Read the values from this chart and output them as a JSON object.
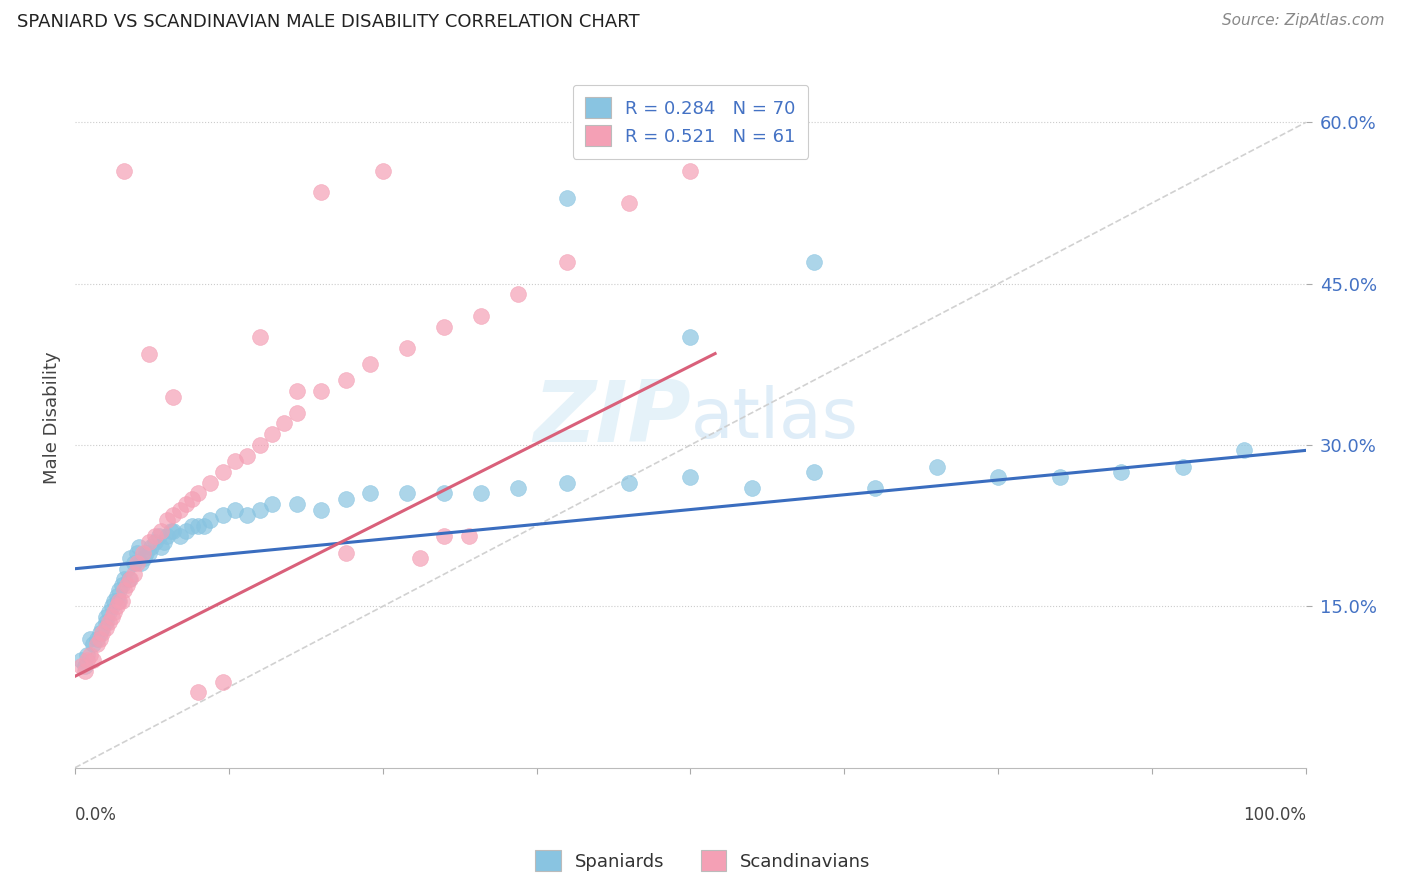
{
  "title": "SPANIARD VS SCANDINAVIAN MALE DISABILITY CORRELATION CHART",
  "source": "Source: ZipAtlas.com",
  "ylabel": "Male Disability",
  "ytick_labels": [
    "15.0%",
    "30.0%",
    "45.0%",
    "60.0%"
  ],
  "ytick_values": [
    0.15,
    0.3,
    0.45,
    0.6
  ],
  "xlim": [
    0.0,
    1.0
  ],
  "ylim": [
    0.0,
    0.65
  ],
  "blue_R": 0.284,
  "blue_N": 70,
  "pink_R": 0.521,
  "pink_N": 61,
  "blue_color": "#89c4e1",
  "pink_color": "#f4a0b5",
  "blue_line_color": "#3a6dbf",
  "pink_line_color": "#d9607a",
  "trend_line_color": "#cccccc",
  "background_color": "#ffffff",
  "grid_color": "#cccccc",
  "blue_line_x0": 0.0,
  "blue_line_y0": 0.185,
  "blue_line_x1": 1.0,
  "blue_line_y1": 0.295,
  "pink_line_x0": 0.0,
  "pink_line_y0": 0.085,
  "pink_line_x1": 0.52,
  "pink_line_y1": 0.385,
  "trend_line_x0": 0.0,
  "trend_line_y0": 0.0,
  "trend_line_x1": 1.0,
  "trend_line_y1": 0.6,
  "blue_scatter_x": [
    0.005,
    0.008,
    0.01,
    0.012,
    0.015,
    0.018,
    0.02,
    0.022,
    0.025,
    0.025,
    0.028,
    0.03,
    0.032,
    0.034,
    0.035,
    0.036,
    0.038,
    0.04,
    0.042,
    0.044,
    0.045,
    0.048,
    0.05,
    0.052,
    0.054,
    0.056,
    0.058,
    0.06,
    0.062,
    0.065,
    0.068,
    0.07,
    0.072,
    0.075,
    0.078,
    0.08,
    0.085,
    0.09,
    0.095,
    0.1,
    0.105,
    0.11,
    0.12,
    0.13,
    0.14,
    0.15,
    0.16,
    0.18,
    0.2,
    0.22,
    0.24,
    0.27,
    0.3,
    0.33,
    0.36,
    0.4,
    0.45,
    0.5,
    0.55,
    0.6,
    0.65,
    0.7,
    0.75,
    0.8,
    0.85,
    0.9,
    0.4,
    0.5,
    0.6,
    0.95
  ],
  "blue_scatter_y": [
    0.1,
    0.095,
    0.105,
    0.12,
    0.115,
    0.12,
    0.125,
    0.13,
    0.135,
    0.14,
    0.145,
    0.15,
    0.155,
    0.16,
    0.155,
    0.165,
    0.17,
    0.175,
    0.185,
    0.175,
    0.195,
    0.19,
    0.2,
    0.205,
    0.19,
    0.195,
    0.2,
    0.2,
    0.205,
    0.21,
    0.215,
    0.205,
    0.21,
    0.215,
    0.22,
    0.22,
    0.215,
    0.22,
    0.225,
    0.225,
    0.225,
    0.23,
    0.235,
    0.24,
    0.235,
    0.24,
    0.245,
    0.245,
    0.24,
    0.25,
    0.255,
    0.255,
    0.255,
    0.255,
    0.26,
    0.265,
    0.265,
    0.27,
    0.26,
    0.275,
    0.26,
    0.28,
    0.27,
    0.27,
    0.275,
    0.28,
    0.53,
    0.4,
    0.47,
    0.295
  ],
  "pink_scatter_x": [
    0.005,
    0.008,
    0.01,
    0.012,
    0.015,
    0.018,
    0.02,
    0.022,
    0.025,
    0.028,
    0.03,
    0.032,
    0.034,
    0.036,
    0.038,
    0.04,
    0.042,
    0.045,
    0.048,
    0.05,
    0.055,
    0.06,
    0.065,
    0.07,
    0.075,
    0.08,
    0.085,
    0.09,
    0.095,
    0.1,
    0.11,
    0.12,
    0.13,
    0.14,
    0.15,
    0.16,
    0.17,
    0.18,
    0.2,
    0.22,
    0.24,
    0.27,
    0.3,
    0.33,
    0.36,
    0.4,
    0.45,
    0.5,
    0.15,
    0.2,
    0.25,
    0.08,
    0.1,
    0.12,
    0.28,
    0.32,
    0.18,
    0.22,
    0.06,
    0.04,
    0.3
  ],
  "pink_scatter_y": [
    0.095,
    0.09,
    0.1,
    0.105,
    0.1,
    0.115,
    0.12,
    0.125,
    0.13,
    0.135,
    0.14,
    0.145,
    0.15,
    0.155,
    0.155,
    0.165,
    0.17,
    0.175,
    0.18,
    0.19,
    0.2,
    0.21,
    0.215,
    0.22,
    0.23,
    0.235,
    0.24,
    0.245,
    0.25,
    0.255,
    0.265,
    0.275,
    0.285,
    0.29,
    0.3,
    0.31,
    0.32,
    0.33,
    0.35,
    0.36,
    0.375,
    0.39,
    0.41,
    0.42,
    0.44,
    0.47,
    0.525,
    0.555,
    0.4,
    0.535,
    0.555,
    0.345,
    0.07,
    0.08,
    0.195,
    0.215,
    0.35,
    0.2,
    0.385,
    0.555,
    0.215
  ]
}
